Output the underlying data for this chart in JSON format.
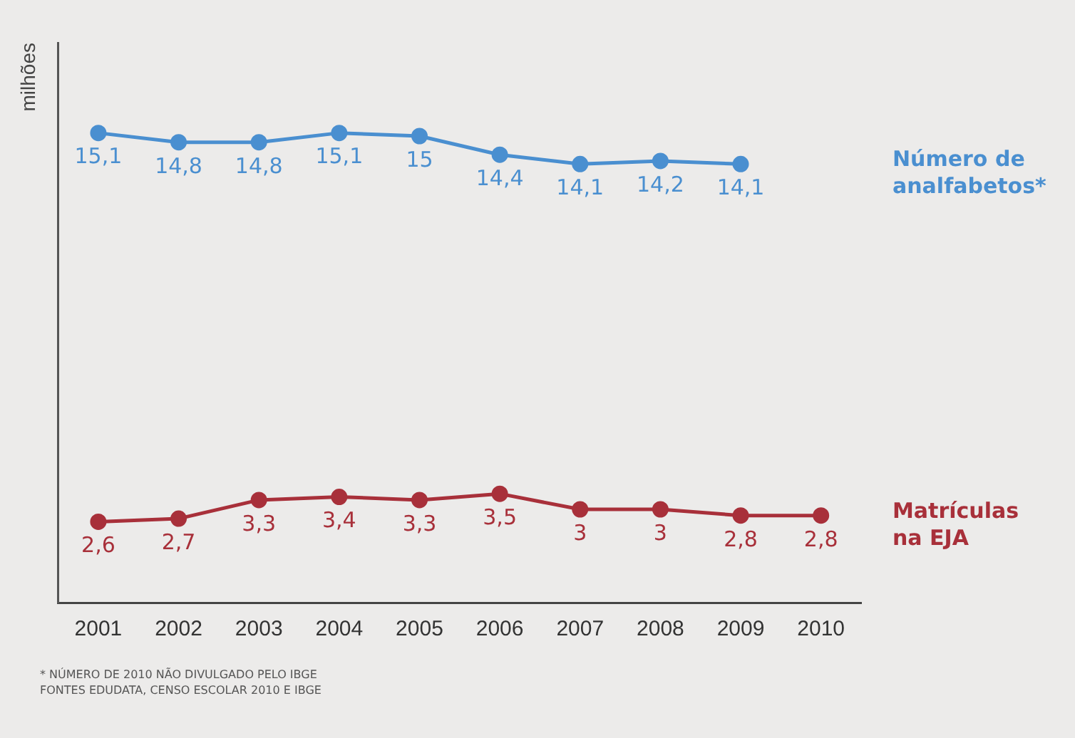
{
  "chart_data": {
    "type": "line",
    "ylabel": "milhões",
    "categories": [
      "2001",
      "2002",
      "2003",
      "2004",
      "2005",
      "2006",
      "2007",
      "2008",
      "2009",
      "2010"
    ],
    "series": [
      {
        "name": "Número de analfabetos*",
        "color": "#4a8fd0",
        "values": [
          15.1,
          14.8,
          14.8,
          15.1,
          15,
          14.4,
          14.1,
          14.2,
          14.1,
          null
        ],
        "value_labels": [
          "15,1",
          "14,8",
          "14,8",
          "15,1",
          "15",
          "14,4",
          "14,1",
          "14,2",
          "14,1",
          null
        ]
      },
      {
        "name": "Matrículas na EJA",
        "color": "#a8303a",
        "values": [
          2.6,
          2.7,
          3.3,
          3.4,
          3.3,
          3.5,
          3,
          3,
          2.8,
          2.8
        ],
        "value_labels": [
          "2,6",
          "2,7",
          "3,3",
          "3,4",
          "3,3",
          "3,5",
          "3",
          "3",
          "2,8",
          "2,8"
        ]
      }
    ],
    "marker": "circle",
    "line_style": "solid",
    "grid": false,
    "legend": false,
    "tick_labels": "x",
    "annotations": [
      "* NÚMERO DE 2010 NÃO DIVULGADO PELO IBGE",
      "FONTES EDUDATA, CENSO ESCOLAR 2010 E IBGE"
    ]
  }
}
